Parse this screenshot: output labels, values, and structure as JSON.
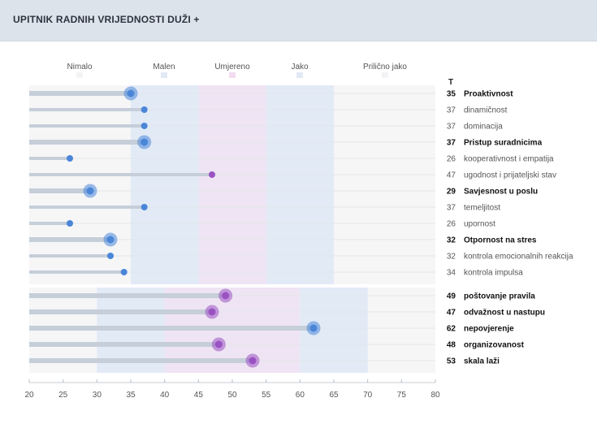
{
  "header": {
    "title": "UPITNIK RADNIH VRIJEDNOSTI DUŽI +"
  },
  "chart_data": {
    "type": "lollipop",
    "title": "UPITNIK RADNIH VRIJEDNOSTI DUŽI +",
    "t_header": "T",
    "xlim": [
      20,
      80
    ],
    "xticks": [
      20,
      25,
      30,
      35,
      40,
      45,
      50,
      55,
      60,
      65,
      70,
      75,
      80
    ],
    "legend": [
      "Nimalo",
      "Malen",
      "Umjereno",
      "Jako",
      "Prilično jako"
    ],
    "colors": {
      "blue": "#4a86d8",
      "purple": "#9a52c2",
      "stem": "#c5ced9",
      "band_low": "#e2eaf6",
      "band_mid": "#efe4f3",
      "band_bg": "#f6f6f7",
      "pink": "#f3dcf0"
    },
    "groups": [
      {
        "bands": [
          [
            35,
            45,
            "low"
          ],
          [
            45,
            55,
            "mid"
          ],
          [
            55,
            65,
            "low"
          ]
        ],
        "rows": [
          {
            "label": "Proaktivnost",
            "value": 35,
            "bold": true,
            "color": "blue"
          },
          {
            "label": "dinamičnost",
            "value": 37,
            "bold": false,
            "color": "blue"
          },
          {
            "label": "dominacija",
            "value": 37,
            "bold": false,
            "color": "blue"
          },
          {
            "label": "Pristup suradnicima",
            "value": 37,
            "bold": true,
            "color": "blue"
          },
          {
            "label": "kooperativnost i empatija",
            "value": 26,
            "bold": false,
            "color": "blue"
          },
          {
            "label": "ugodnost i prijateljski stav",
            "value": 47,
            "bold": false,
            "color": "purple"
          },
          {
            "label": "Savjesnost u poslu",
            "value": 29,
            "bold": true,
            "color": "blue"
          },
          {
            "label": "temeljitost",
            "value": 37,
            "bold": false,
            "color": "blue"
          },
          {
            "label": "upornost",
            "value": 26,
            "bold": false,
            "color": "blue"
          },
          {
            "label": "Otpornost na stres",
            "value": 32,
            "bold": true,
            "color": "blue"
          },
          {
            "label": "kontrola emocionalnih reakcija",
            "value": 32,
            "bold": false,
            "color": "blue"
          },
          {
            "label": "kontrola impulsa",
            "value": 34,
            "bold": false,
            "color": "blue"
          }
        ]
      },
      {
        "bands": [
          [
            30,
            40,
            "low"
          ],
          [
            40,
            60,
            "mid"
          ],
          [
            60,
            70,
            "low"
          ]
        ],
        "rows": [
          {
            "label": "poštovanje pravila",
            "value": 49,
            "bold": true,
            "color": "purple"
          },
          {
            "label": "odvažnost u nastupu",
            "value": 47,
            "bold": true,
            "color": "purple"
          },
          {
            "label": "nepovjerenje",
            "value": 62,
            "bold": true,
            "color": "blue"
          },
          {
            "label": "organizovanost",
            "value": 48,
            "bold": true,
            "color": "purple"
          },
          {
            "label": "skala laži",
            "value": 53,
            "bold": true,
            "color": "purple"
          }
        ]
      }
    ]
  }
}
